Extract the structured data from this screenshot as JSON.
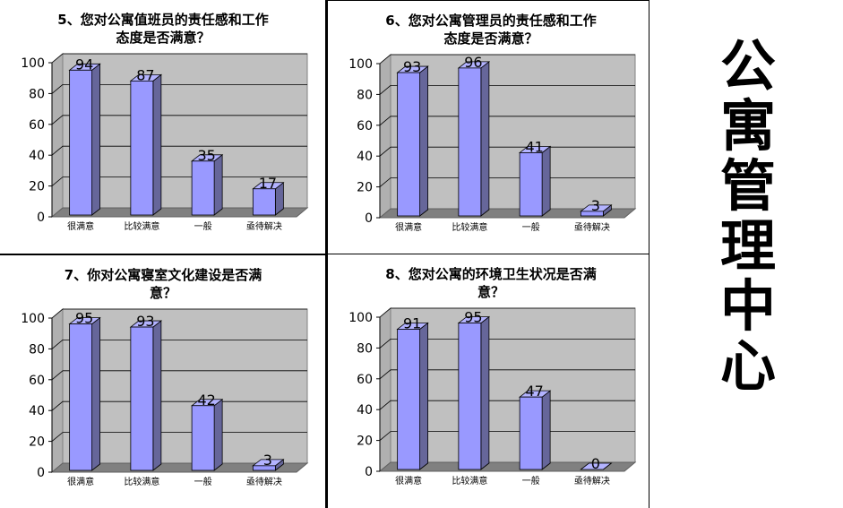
{
  "side_title": [
    "公",
    "寓",
    "管",
    "理",
    "中",
    "心"
  ],
  "chart_data": [
    {
      "type": "bar",
      "title_lines": [
        "5、您对公寓值班员的责任感和工作",
        "态度是否满意？"
      ],
      "categories": [
        "很满意",
        "比较满意",
        "一般",
        "亟待解决"
      ],
      "values": [
        94,
        87,
        35,
        17
      ],
      "yticks": [
        0,
        20,
        40,
        60,
        80,
        100
      ],
      "ylim": [
        0,
        100
      ],
      "colors": {
        "bar_front": "#9999ff",
        "bar_side": "#66669a",
        "wall": "#c0c0c0",
        "floor": "#808080"
      }
    },
    {
      "type": "bar",
      "title_lines": [
        "6、您对公寓管理员的责任感和工作",
        "态度是否满意？"
      ],
      "categories": [
        "很满意",
        "比较满意",
        "一般",
        "亟待解决"
      ],
      "values": [
        93,
        96,
        41,
        3
      ],
      "yticks": [
        0,
        20,
        40,
        60,
        80,
        100
      ],
      "ylim": [
        0,
        100
      ],
      "colors": {
        "bar_front": "#9999ff",
        "bar_side": "#66669a",
        "wall": "#c0c0c0",
        "floor": "#808080"
      }
    },
    {
      "type": "bar",
      "title_lines": [
        "7、你对公寓寝室文化建设是否满",
        "意？"
      ],
      "categories": [
        "很满意",
        "比较满意",
        "一般",
        "亟待解决"
      ],
      "values": [
        95,
        93,
        42,
        3
      ],
      "yticks": [
        0,
        20,
        40,
        60,
        80,
        100
      ],
      "ylim": [
        0,
        100
      ],
      "colors": {
        "bar_front": "#9999ff",
        "bar_side": "#66669a",
        "wall": "#c0c0c0",
        "floor": "#808080"
      }
    },
    {
      "type": "bar",
      "title_lines": [
        "8、您对公寓的环境卫生状况是否满",
        "意？"
      ],
      "categories": [
        "很满意",
        "比较满意",
        "一般",
        "亟待解决"
      ],
      "values": [
        91,
        95,
        47,
        0
      ],
      "yticks": [
        0,
        20,
        40,
        60,
        80,
        100
      ],
      "ylim": [
        0,
        100
      ],
      "colors": {
        "bar_front": "#9999ff",
        "bar_side": "#66669a",
        "wall": "#c0c0c0",
        "floor": "#808080"
      }
    }
  ]
}
